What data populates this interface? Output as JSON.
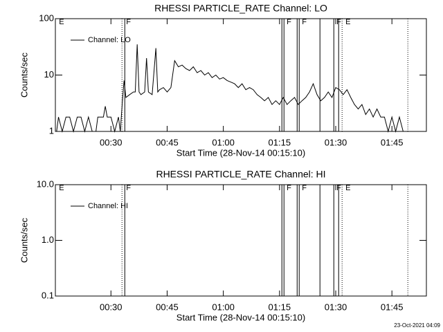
{
  "chart_data": [
    {
      "type": "line",
      "title": "RHESSI PARTICLE_RATE Channel: LO",
      "xlabel": "Start Time (28-Nov-14 00:15:10)",
      "ylabel": "Counts/sec",
      "x": [
        15.5,
        16,
        17,
        18,
        19,
        20,
        21,
        22,
        23,
        24,
        25,
        26,
        26.5,
        27,
        28,
        28.5,
        29,
        30,
        31,
        32,
        32.5,
        33,
        33.5,
        34,
        35,
        36,
        36.5,
        37,
        37.5,
        38,
        39,
        39.5,
        40,
        41,
        42,
        42.5,
        43,
        44,
        45,
        46,
        47,
        48,
        49,
        50,
        51,
        52,
        53,
        54,
        55,
        56,
        57,
        58,
        59,
        60,
        61,
        62,
        63,
        64,
        65,
        66,
        67,
        68,
        69,
        70,
        71,
        72,
        73,
        74,
        75,
        76,
        77,
        78,
        79,
        80,
        81,
        82,
        83,
        84,
        85,
        86,
        87,
        88,
        89,
        90,
        91,
        92,
        93,
        94,
        95,
        96,
        97,
        98,
        99,
        100,
        101,
        102,
        103,
        104,
        105,
        106,
        107,
        108
      ],
      "series": [
        {
          "name": "Channel: LO",
          "color": "#000000",
          "values": [
            1,
            1.8,
            1,
            1.8,
            1.8,
            1,
            1.8,
            1.8,
            1,
            1.8,
            1,
            1,
            1.8,
            1.8,
            1.8,
            2.8,
            1.8,
            1.8,
            1,
            1.8,
            1,
            3,
            8,
            4,
            4.5,
            5,
            5,
            35,
            5,
            4.5,
            5,
            20,
            5,
            4.5,
            30,
            5,
            5.5,
            6,
            5,
            6,
            18,
            14,
            15,
            13,
            12,
            14,
            11,
            12,
            10,
            11,
            9,
            10,
            8.5,
            9,
            8,
            7.5,
            7,
            6,
            7,
            5.5,
            6,
            5.5,
            4.5,
            4,
            3.5,
            4,
            3,
            3.5,
            3,
            4,
            3,
            3.5,
            4,
            3,
            3.5,
            4,
            5,
            7,
            4.5,
            3.5,
            4,
            5,
            4,
            6,
            5.5,
            4.5,
            5.5,
            4,
            3,
            2.5,
            3,
            2,
            2.5,
            1.8,
            2.5,
            1.8,
            1.8,
            1,
            1.8,
            1,
            1.8,
            1
          ]
        }
      ],
      "xlim": [
        15.17,
        114.2
      ],
      "xticks": [
        {
          "value": 30,
          "label": "00:30"
        },
        {
          "value": 45,
          "label": "00:45"
        },
        {
          "value": 60,
          "label": "01:00"
        },
        {
          "value": 75,
          "label": "01:15"
        },
        {
          "value": 90,
          "label": "01:30"
        },
        {
          "value": 105,
          "label": "01:45"
        }
      ],
      "ylim": [
        1,
        100
      ],
      "yticks": [
        1,
        10,
        100
      ],
      "log_y": true,
      "legend": "upper-left",
      "vlines": [
        {
          "x": 32.95,
          "style": "dotted"
        },
        {
          "x": 33.7,
          "style": "solid"
        },
        {
          "x": 75.63,
          "style": "solid"
        },
        {
          "x": 76.19,
          "style": "solid"
        },
        {
          "x": 79.7,
          "style": "solid"
        },
        {
          "x": 80.25,
          "style": "solid"
        },
        {
          "x": 85.79,
          "style": "solid"
        },
        {
          "x": 89.49,
          "style": "solid"
        },
        {
          "x": 90.78,
          "style": "solid"
        },
        {
          "x": 91.7,
          "style": "dotted"
        },
        {
          "x": 109.25,
          "style": "dotted"
        }
      ],
      "annotations": [
        {
          "x": 16.15,
          "text": "E"
        },
        {
          "x": 34.06,
          "text": "F"
        },
        {
          "x": 76.9,
          "text": "F"
        },
        {
          "x": 80.99,
          "text": "F"
        },
        {
          "x": 90.2,
          "text": "F"
        },
        {
          "x": 92.6,
          "text": "E"
        }
      ]
    },
    {
      "type": "line",
      "title": "RHESSI PARTICLE_RATE Channel: HI",
      "xlabel": "Start Time (28-Nov-14 00:15:10)",
      "ylabel": "Counts/sec",
      "x": [],
      "series": [
        {
          "name": "Channel: HI",
          "color": "#000000",
          "values": []
        }
      ],
      "xlim": [
        15.17,
        114.2
      ],
      "xticks": [
        {
          "value": 30,
          "label": "00:30"
        },
        {
          "value": 45,
          "label": "00:45"
        },
        {
          "value": 60,
          "label": "01:00"
        },
        {
          "value": 75,
          "label": "01:15"
        },
        {
          "value": 90,
          "label": "01:30"
        },
        {
          "value": 105,
          "label": "01:45"
        }
      ],
      "ylim": [
        0.1,
        10
      ],
      "yticks": [
        0.1,
        {
          "value": 1,
          "label": "1.0"
        },
        {
          "value": 10,
          "label": "10.0"
        }
      ],
      "log_y": true,
      "legend": "upper-left",
      "vlines": [
        {
          "x": 32.95,
          "style": "dotted"
        },
        {
          "x": 33.7,
          "style": "solid"
        },
        {
          "x": 75.63,
          "style": "solid"
        },
        {
          "x": 76.19,
          "style": "solid"
        },
        {
          "x": 79.7,
          "style": "solid"
        },
        {
          "x": 80.25,
          "style": "solid"
        },
        {
          "x": 85.79,
          "style": "solid"
        },
        {
          "x": 89.49,
          "style": "solid"
        },
        {
          "x": 90.78,
          "style": "solid"
        },
        {
          "x": 91.7,
          "style": "dotted"
        },
        {
          "x": 109.25,
          "style": "dotted"
        }
      ],
      "annotations": [
        {
          "x": 16.15,
          "text": "E"
        },
        {
          "x": 34.06,
          "text": "F"
        },
        {
          "x": 76.9,
          "text": "F"
        },
        {
          "x": 80.99,
          "text": "F"
        },
        {
          "x": 90.2,
          "text": "F"
        },
        {
          "x": 92.6,
          "text": "E"
        }
      ]
    }
  ],
  "footer": "23-Oct-2021 04:09"
}
